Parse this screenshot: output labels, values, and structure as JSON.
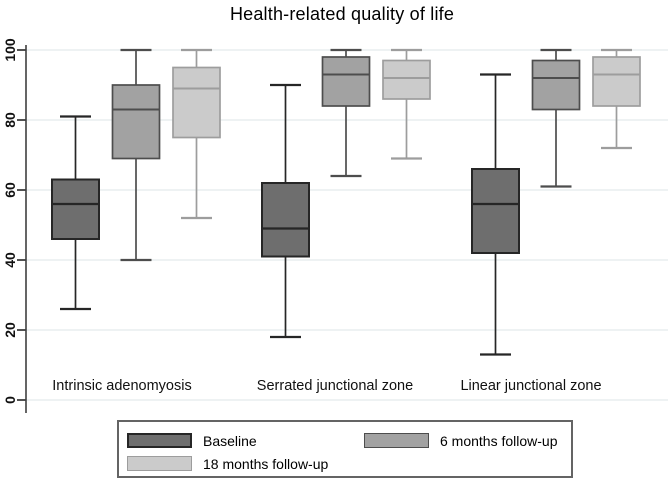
{
  "title": "Health-related quality of life",
  "colors": {
    "grid": "#e3eaec",
    "axis": "#3f3f3f",
    "text": "#111111",
    "legend_border": "#646464",
    "background": "#ffffff"
  },
  "chart_data": {
    "type": "box",
    "title": "Health-related quality of life",
    "xlabel": "",
    "ylabel": "",
    "ylim": [
      0,
      100
    ],
    "y_ticks": [
      0,
      20,
      40,
      60,
      80,
      100
    ],
    "grid": true,
    "legend_position": "bottom",
    "groups": [
      "Intrinsic adenomyosis",
      "Serrated junctional zone",
      "Linear junctional zone"
    ],
    "series": [
      {
        "name": "Baseline",
        "fill": "#6e6e6e",
        "stroke": "#262626",
        "boxes": [
          {
            "low": 26,
            "q1": 46,
            "median": 56,
            "q3": 63,
            "high": 81
          },
          {
            "low": 18,
            "q1": 41,
            "median": 49,
            "q3": 62,
            "high": 90
          },
          {
            "low": 13,
            "q1": 42,
            "median": 56,
            "q3": 66,
            "high": 93
          }
        ]
      },
      {
        "name": "6 months follow-up",
        "fill": "#a2a2a2",
        "stroke": "#4d4d4d",
        "boxes": [
          {
            "low": 40,
            "q1": 69,
            "median": 83,
            "q3": 90,
            "high": 100
          },
          {
            "low": 64,
            "q1": 84,
            "median": 93,
            "q3": 98,
            "high": 100
          },
          {
            "low": 61,
            "q1": 83,
            "median": 92,
            "q3": 97,
            "high": 100
          }
        ]
      },
      {
        "name": "18 months follow-up",
        "fill": "#cbcbcb",
        "stroke": "#9d9d9d",
        "boxes": [
          {
            "low": 52,
            "q1": 75,
            "median": 89,
            "q3": 95,
            "high": 100
          },
          {
            "low": 69,
            "q1": 86,
            "median": 92,
            "q3": 97,
            "high": 100
          },
          {
            "low": 72,
            "q1": 84,
            "median": 93,
            "q3": 98,
            "high": 100
          }
        ]
      }
    ]
  }
}
